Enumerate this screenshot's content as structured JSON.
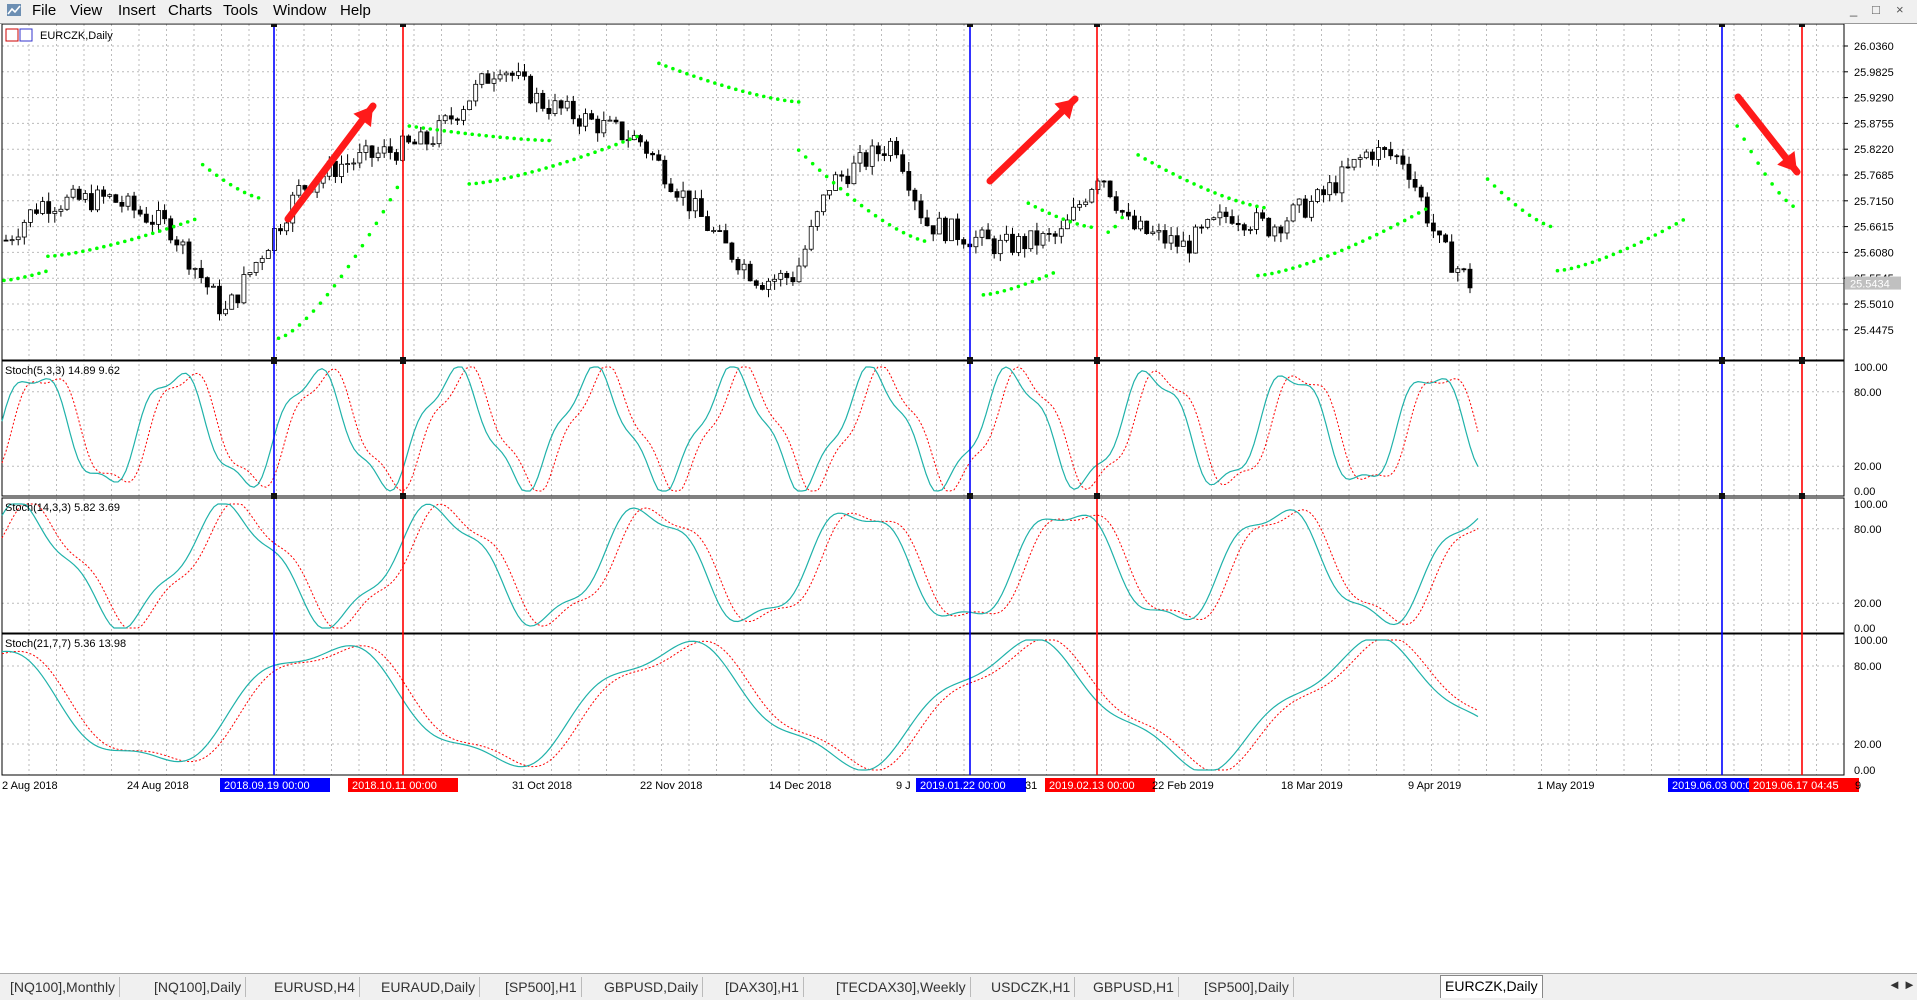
{
  "menu": [
    "File",
    "View",
    "Insert",
    "Charts",
    "Tools",
    "Window",
    "Help"
  ],
  "window_controls": [
    "_",
    "□",
    "×"
  ],
  "chart": {
    "title": "EURCZK,Daily",
    "current_price": "25.5434",
    "price_ticks": [
      "26.0360",
      "25.9825",
      "25.9290",
      "25.8755",
      "25.8220",
      "25.7685",
      "25.7150",
      "25.6615",
      "25.6080",
      "25.5545",
      "25.5010",
      "25.4475"
    ],
    "indicators": [
      {
        "label": "Stoch(5,3,3) 14.89 9.62",
        "levels": [
          "100.00",
          "80.00",
          "20.00",
          "0.00"
        ]
      },
      {
        "label": "Stoch(14,3,3) 5.82 3.69",
        "levels": [
          "100.00",
          "80.00",
          "20.00",
          "0.00"
        ]
      },
      {
        "label": "Stoch(21,7,7) 5.36 13.98",
        "levels": [
          "100.00",
          "80.00",
          "20.00",
          "0.00"
        ]
      }
    ],
    "date_labels": [
      "2 Aug 2018",
      "24 Aug 2018",
      "31 Oct 2018",
      "22 Nov 2018",
      "14 Dec 2018",
      "9 J",
      "31",
      "22 Feb 2019",
      "18 Mar 2019",
      "9 Apr 2019",
      "1 May 2019",
      "9"
    ],
    "markers": [
      {
        "label": "2018.09.19 00:00",
        "color": "#0000ff"
      },
      {
        "label": "2018.10.11 00:00",
        "color": "#ff0000"
      },
      {
        "label": "2019.01.22 00:00",
        "color": "#0000ff"
      },
      {
        "label": "2019.02.13 00:00",
        "color": "#ff0000"
      },
      {
        "label": "2019.06.03 00:00",
        "color": "#0000ff"
      },
      {
        "label": "2019.06.17 04:45",
        "color": "#ff0000"
      }
    ],
    "colors": {
      "bull": "#ffffff",
      "bear": "#000000",
      "sar": "#00ff00",
      "k_line": "#20b2aa",
      "d_line": "#ff0000",
      "blue_line": "#0000ff",
      "red_line": "#ff0000",
      "arrow": "#ff1a1a"
    }
  },
  "tabs": [
    "[NQ100],Monthly",
    "[NQ100],Daily",
    "EURUSD,H4",
    "EURAUD,Daily",
    "[SP500],H1",
    "GBPUSD,Daily",
    "[DAX30],H1",
    "[TECDAX30],Weekly",
    "USDCZK,H1",
    "GBPUSD,H1",
    "[SP500],Daily",
    "EURCZK,Daily",
    "EURCZK,Daily"
  ],
  "active_tab": "EURCZK,Daily"
}
